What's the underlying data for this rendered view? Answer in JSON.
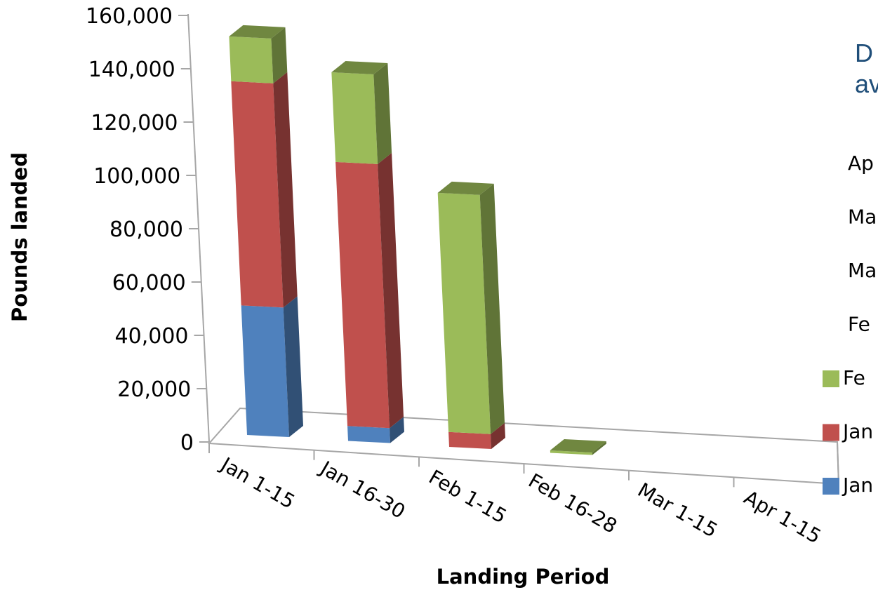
{
  "chart_data": {
    "type": "bar",
    "stacked": true,
    "three_d": true,
    "title_lines": [
      "D",
      "av"
    ],
    "xlabel": "Landing Period",
    "ylabel": "Pounds landed",
    "ylim": [
      0,
      160000
    ],
    "yticks": [
      0,
      20000,
      40000,
      60000,
      80000,
      100000,
      120000,
      140000,
      160000
    ],
    "ytick_labels": [
      "0",
      "20,000",
      "40,000",
      "60,000",
      "80,000",
      "100,000",
      "120,000",
      "140,000",
      "160,000"
    ],
    "categories": [
      "Jan 1-15",
      "Jan 16-30",
      "Feb 1-15",
      "Feb 16-28",
      "Mar 1-15",
      "Apr 1-15"
    ],
    "series": [
      {
        "name": "Jan",
        "color": "#4f81bd",
        "values": [
          52000,
          6000,
          0,
          0,
          0,
          0
        ]
      },
      {
        "name": "Jan",
        "color": "#c0504d",
        "values": [
          90000,
          106000,
          6000,
          0,
          0,
          0
        ]
      },
      {
        "name": "Fe",
        "color": "#9bbb59",
        "values": [
          18000,
          36000,
          96000,
          1000,
          0,
          0
        ]
      },
      {
        "name": "Fe",
        "color": "#9bbb59",
        "values": [
          0,
          0,
          0,
          0,
          0,
          0
        ]
      },
      {
        "name": "Ma",
        "color": "#9bbb59",
        "values": [
          0,
          0,
          0,
          0,
          0,
          0
        ]
      },
      {
        "name": "Ma",
        "color": "#9bbb59",
        "values": [
          0,
          0,
          0,
          0,
          0,
          0
        ]
      },
      {
        "name": "Ap",
        "color": "#9bbb59",
        "values": [
          0,
          0,
          0,
          0,
          0,
          0
        ]
      }
    ],
    "legend": {
      "placement": "right",
      "entries": [
        {
          "label": "Ap",
          "color": "#9bbb59",
          "swatch": false
        },
        {
          "label": "Ma",
          "color": "#9bbb59",
          "swatch": false
        },
        {
          "label": "Ma",
          "color": "#9bbb59",
          "swatch": false
        },
        {
          "label": "Fe",
          "color": "#9bbb59",
          "swatch": false
        },
        {
          "label": "Fe",
          "color": "#9bbb59",
          "swatch": true
        },
        {
          "label": "Jan",
          "color": "#c0504d",
          "swatch": true
        },
        {
          "label": "Jan",
          "color": "#4f81bd",
          "swatch": true
        }
      ]
    }
  }
}
